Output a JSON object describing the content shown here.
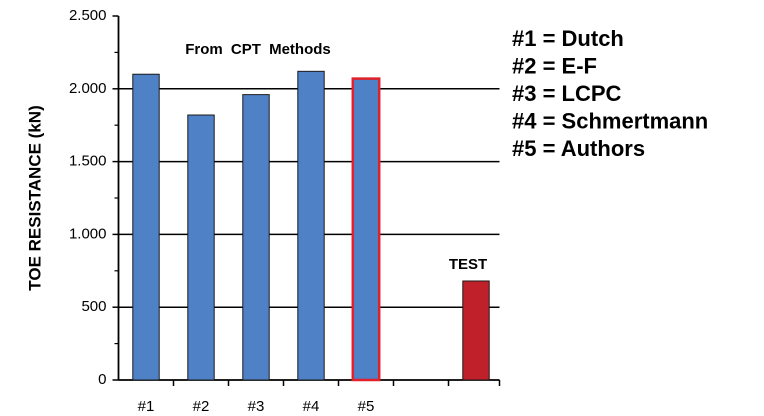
{
  "chart_data": {
    "type": "bar",
    "ylabel": "TOE RESISTANCE (kN)",
    "categories": [
      "#1",
      "#2",
      "#3",
      "#4",
      "#5",
      null,
      null
    ],
    "values": [
      2100,
      1820,
      1960,
      2120,
      2070,
      null,
      680
    ],
    "colors": [
      "#4f81c7",
      "#4f81c7",
      "#4f81c7",
      "#4f81c7",
      "#4f81c7",
      "#4f81c7",
      "#c0202a"
    ],
    "edgecolors": [
      "#1a1a1a",
      "#1a1a1a",
      "#1a1a1a",
      "#1a1a1a",
      "#e0202a",
      "#1a1a1a",
      "#1a1a1a"
    ],
    "ylim": [
      0,
      2500
    ],
    "yticks": [
      0,
      500,
      {
        "value": 1000,
        "label": "1.000"
      },
      {
        "value": 1500,
        "label": "1.500"
      },
      {
        "value": 2000,
        "label": "2.000"
      },
      {
        "value": 2500,
        "label": "2.500"
      }
    ],
    "grid": true,
    "annotations": [
      "From CPT Methods",
      "TEST"
    ],
    "legend_notes": [
      {
        "text": "#1 = Dutch",
        "color": "#1f3864"
      },
      {
        "text": "#2 = E-F",
        "color": "#c0202a"
      },
      {
        "text": "#3 = LCPC",
        "color": "#1a9a4a"
      },
      {
        "text": "#4 = Schmertmann",
        "color": "#4a5fa8"
      },
      {
        "text": "#5 = Authors",
        "color": "#e02020"
      }
    ]
  }
}
